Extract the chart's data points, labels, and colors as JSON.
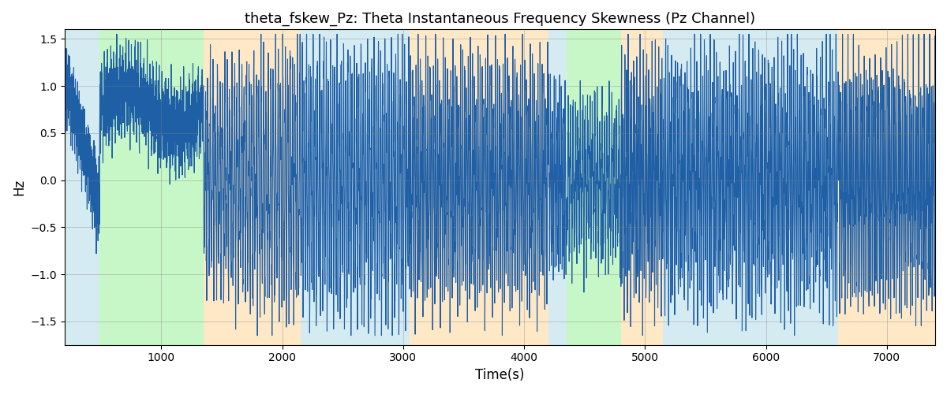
{
  "title": "theta_fskew_Pz: Theta Instantaneous Frequency Skewness (Pz Channel)",
  "xlabel": "Time(s)",
  "ylabel": "Hz",
  "xlim": [
    200,
    7400
  ],
  "ylim": [
    -1.75,
    1.6
  ],
  "yticks": [
    -1.5,
    -1.0,
    -0.5,
    0.0,
    0.5,
    1.0,
    1.5
  ],
  "xticks": [
    1000,
    2000,
    3000,
    4000,
    5000,
    6000,
    7000
  ],
  "line_color": "#1f5fa6",
  "line_width": 0.8,
  "bg_regions": [
    {
      "start": 200,
      "end": 490,
      "color": "#add8e6",
      "alpha": 0.5
    },
    {
      "start": 490,
      "end": 1350,
      "color": "#90ee90",
      "alpha": 0.5
    },
    {
      "start": 1350,
      "end": 2150,
      "color": "#ffd9a0",
      "alpha": 0.6
    },
    {
      "start": 2150,
      "end": 3050,
      "color": "#add8e6",
      "alpha": 0.5
    },
    {
      "start": 3050,
      "end": 4200,
      "color": "#ffd9a0",
      "alpha": 0.6
    },
    {
      "start": 4200,
      "end": 4350,
      "color": "#add8e6",
      "alpha": 0.5
    },
    {
      "start": 4350,
      "end": 4800,
      "color": "#90ee90",
      "alpha": 0.5
    },
    {
      "start": 4800,
      "end": 5150,
      "color": "#ffd9a0",
      "alpha": 0.6
    },
    {
      "start": 5150,
      "end": 6600,
      "color": "#add8e6",
      "alpha": 0.5
    },
    {
      "start": 6600,
      "end": 7400,
      "color": "#ffd9a0",
      "alpha": 0.6
    }
  ]
}
